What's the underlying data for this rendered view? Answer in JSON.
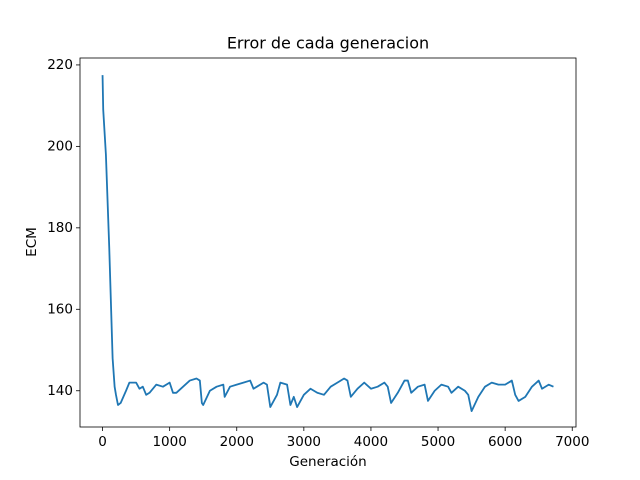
{
  "chart_data": {
    "type": "line",
    "title": "Error de cada generacion",
    "x_label": "Generación",
    "y_label": "ECM",
    "color": "#1f77b4",
    "x": [
      0,
      10,
      50,
      100,
      150,
      180,
      200,
      230,
      270,
      350,
      400,
      500,
      550,
      600,
      650,
      700,
      800,
      900,
      1000,
      1050,
      1100,
      1200,
      1300,
      1400,
      1450,
      1480,
      1500,
      1600,
      1700,
      1800,
      1820,
      1900,
      2000,
      2100,
      2200,
      2250,
      2300,
      2400,
      2450,
      2500,
      2600,
      2650,
      2750,
      2800,
      2850,
      2900,
      3000,
      3100,
      3200,
      3300,
      3400,
      3500,
      3600,
      3650,
      3700,
      3800,
      3900,
      4000,
      4100,
      4200,
      4250,
      4300,
      4400,
      4500,
      4550,
      4600,
      4700,
      4800,
      4850,
      4950,
      5050,
      5150,
      5200,
      5300,
      5400,
      5450,
      5500,
      5600,
      5700,
      5800,
      5900,
      6000,
      6100,
      6150,
      6200,
      6300,
      6400,
      6500,
      6550,
      6650,
      6720
    ],
    "values": [
      217.5,
      209,
      198,
      175,
      148,
      141,
      139,
      136.5,
      137,
      140,
      142,
      142,
      140.5,
      141,
      139,
      139.5,
      141.5,
      141,
      142,
      139.5,
      139.5,
      141,
      142.5,
      143,
      142.5,
      137,
      136.5,
      140,
      141,
      141.5,
      138.5,
      141,
      141.5,
      142,
      142.5,
      140.5,
      141,
      142,
      141.5,
      136,
      139,
      142,
      141.5,
      136.5,
      138.5,
      136,
      139,
      140.5,
      139.5,
      139,
      141,
      142,
      143,
      142.5,
      138.5,
      140.5,
      142,
      140.5,
      141,
      142,
      141,
      137,
      139.5,
      142.5,
      142.5,
      139.5,
      141,
      141.5,
      137.5,
      140,
      141.5,
      141,
      139.5,
      141,
      140,
      139,
      135,
      138.5,
      141,
      142,
      141.5,
      141.5,
      142.5,
      139,
      137.5,
      138.5,
      141,
      142.5,
      140.5,
      141.5,
      141
    ],
    "xlim": [
      -336,
      7056
    ],
    "ylim": [
      131.1,
      221.7
    ],
    "xticks": [
      0,
      1000,
      2000,
      3000,
      4000,
      5000,
      6000,
      7000
    ],
    "yticks": [
      140,
      160,
      180,
      200,
      220
    ]
  }
}
